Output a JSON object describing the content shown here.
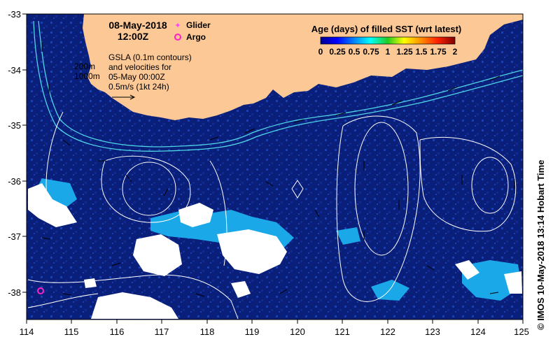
{
  "map": {
    "date": "08-May-2018",
    "time": "12:00Z",
    "legend_glider": "Glider",
    "legend_argo": "Argo",
    "depth_200": "200m",
    "depth_1000": "1000m",
    "gsla_line1": "GSLA (0.1m contours)",
    "gsla_line2": "and velocities for",
    "gsla_line3": "05-May 00:00Z",
    "scale_text": "0.5m/s (1kt 24h)",
    "colorbar_title": "Age (days) of filled SST (wrt latest)",
    "colorbar_ticks": [
      "0",
      "0.25",
      "0.5",
      "0.75",
      "1",
      "1.25",
      "1.5",
      "1.75",
      "2"
    ],
    "credit": "© IMOS 10-May-2018 13:14 Hobart Time",
    "lon_ticks": [
      "114",
      "115",
      "116",
      "117",
      "118",
      "119",
      "120",
      "121",
      "122",
      "123",
      "124",
      "125"
    ],
    "lat_ticks": [
      "-33",
      "-34",
      "-35",
      "-36",
      "-37",
      "-38"
    ],
    "colors": {
      "ocean": "#0a1f7a",
      "ocean_light": "#1b3fae",
      "land": "#fcc896",
      "cloud": "#ffffff",
      "cyan_patch": "#1aa8e8",
      "isobath": "#4fd6e6",
      "glider": "#ff40ff",
      "argo": "#ff20c8"
    }
  }
}
